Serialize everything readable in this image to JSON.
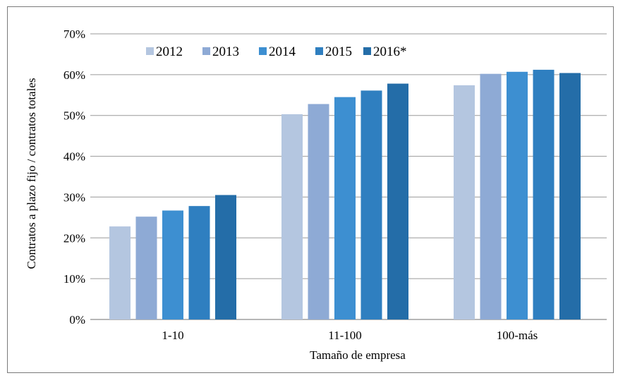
{
  "chart_data": {
    "type": "bar",
    "title": "",
    "xlabel": "Tamaño de empresa",
    "ylabel": "Contratos a plazo fijo / contratos totales",
    "categories": [
      "1-10",
      "11-100",
      "100-más"
    ],
    "ylim": [
      0,
      70
    ],
    "yticks": [
      "0%",
      "10%",
      "20%",
      "30%",
      "40%",
      "50%",
      "60%",
      "70%"
    ],
    "grid": true,
    "legend_position": "top-left",
    "series": [
      {
        "name": "2012",
        "color": "#b4c6e0",
        "values": [
          22.8,
          50.3,
          57.4
        ]
      },
      {
        "name": "2013",
        "color": "#8eaad5",
        "values": [
          25.2,
          52.8,
          60.2
        ]
      },
      {
        "name": "2014",
        "color": "#3d8fd1",
        "values": [
          26.7,
          54.5,
          60.7
        ]
      },
      {
        "name": "2015",
        "color": "#2f7fc0",
        "values": [
          27.8,
          56.1,
          61.2
        ]
      },
      {
        "name": "2016*",
        "color": "#246da8",
        "values": [
          30.5,
          57.8,
          60.4
        ]
      }
    ]
  }
}
